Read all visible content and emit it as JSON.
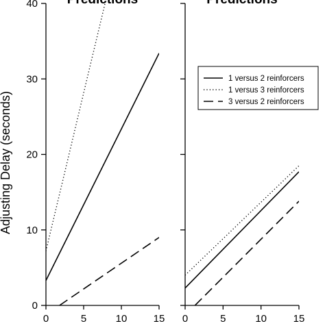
{
  "chart_data": [
    {
      "type": "line",
      "title": "Predictions",
      "ylabel": "Adjusting Delay (seconds)",
      "xlabel": "",
      "xlim": [
        0,
        15
      ],
      "ylim": [
        0,
        40
      ],
      "x_ticks": [
        "0",
        "5",
        "10",
        "15"
      ],
      "y_ticks": [
        "0",
        "10",
        "20",
        "30",
        "40"
      ],
      "grid": false,
      "series": [
        {
          "name": "1 versus 2 reinforcers",
          "style": "solid",
          "color": "#000000",
          "x": [
            0,
            15
          ],
          "y": [
            3.3,
            33.4
          ]
        },
        {
          "name": "1 versus 3 reinforcers",
          "style": "dotted",
          "color": "#000000",
          "x": [
            0,
            15
          ],
          "y": [
            7.2,
            70
          ]
        },
        {
          "name": "3 versus 2 reinforcers",
          "style": "dashed",
          "color": "#000000",
          "x": [
            1.8,
            15
          ],
          "y": [
            0,
            9.0
          ]
        }
      ]
    },
    {
      "type": "line",
      "title": "Predictions",
      "xlabel": "",
      "ylabel": "",
      "xlim": [
        0,
        15
      ],
      "ylim": [
        0,
        40
      ],
      "x_ticks": [
        "0",
        "5",
        "10",
        "15"
      ],
      "legend": {
        "placement": "top-right",
        "entries": [
          "1 versus 2 reinforcers",
          "1 versus 3 reinforcers",
          "3 versus 2 reinforcers"
        ]
      },
      "grid": false,
      "series": [
        {
          "name": "1 versus 2 reinforcers",
          "style": "solid",
          "color": "#000000",
          "x": [
            0,
            15
          ],
          "y": [
            2.3,
            17.7
          ]
        },
        {
          "name": "1 versus 3 reinforcers",
          "style": "dotted",
          "color": "#000000",
          "x": [
            0,
            15
          ],
          "y": [
            4.0,
            18.5
          ]
        },
        {
          "name": "3 versus 2 reinforcers",
          "style": "dashed",
          "color": "#000000",
          "x": [
            1.3,
            15
          ],
          "y": [
            0,
            13.8
          ]
        }
      ]
    }
  ]
}
